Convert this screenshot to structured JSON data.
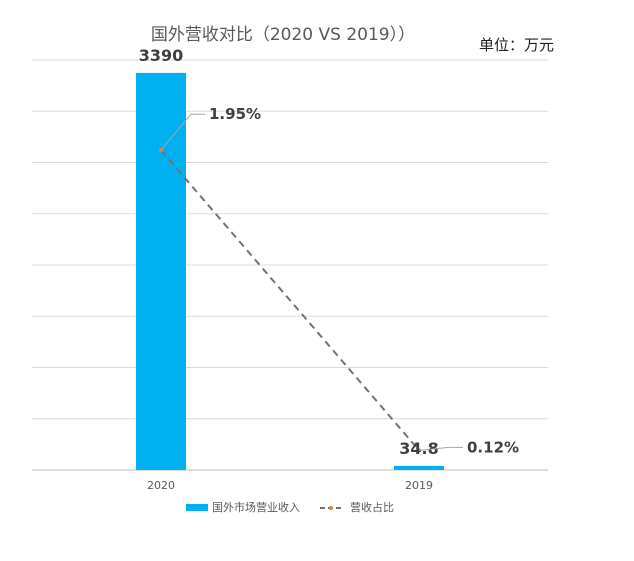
{
  "chart_data": {
    "type": "bar",
    "title": "国外营收对比（2020 VS 2019））",
    "unit_label": "单位：万元",
    "categories": [
      "2020",
      "2019"
    ],
    "series": [
      {
        "name": "国外市场营业收入",
        "type": "bar",
        "values": [
          3390,
          34.8
        ],
        "value_labels": [
          "3390",
          "34.8"
        ],
        "color": "#00b0f0"
      },
      {
        "name": "营收占比",
        "type": "line",
        "values": [
          1.95,
          0.12
        ],
        "value_labels": [
          "1.95%",
          "0.12%"
        ],
        "color": "#767171",
        "line_style": "dashed"
      }
    ],
    "bar_ylim": [
      0,
      3500
    ],
    "line_ylim": [
      0,
      2.5
    ],
    "grid": true,
    "legend_position": "bottom"
  }
}
